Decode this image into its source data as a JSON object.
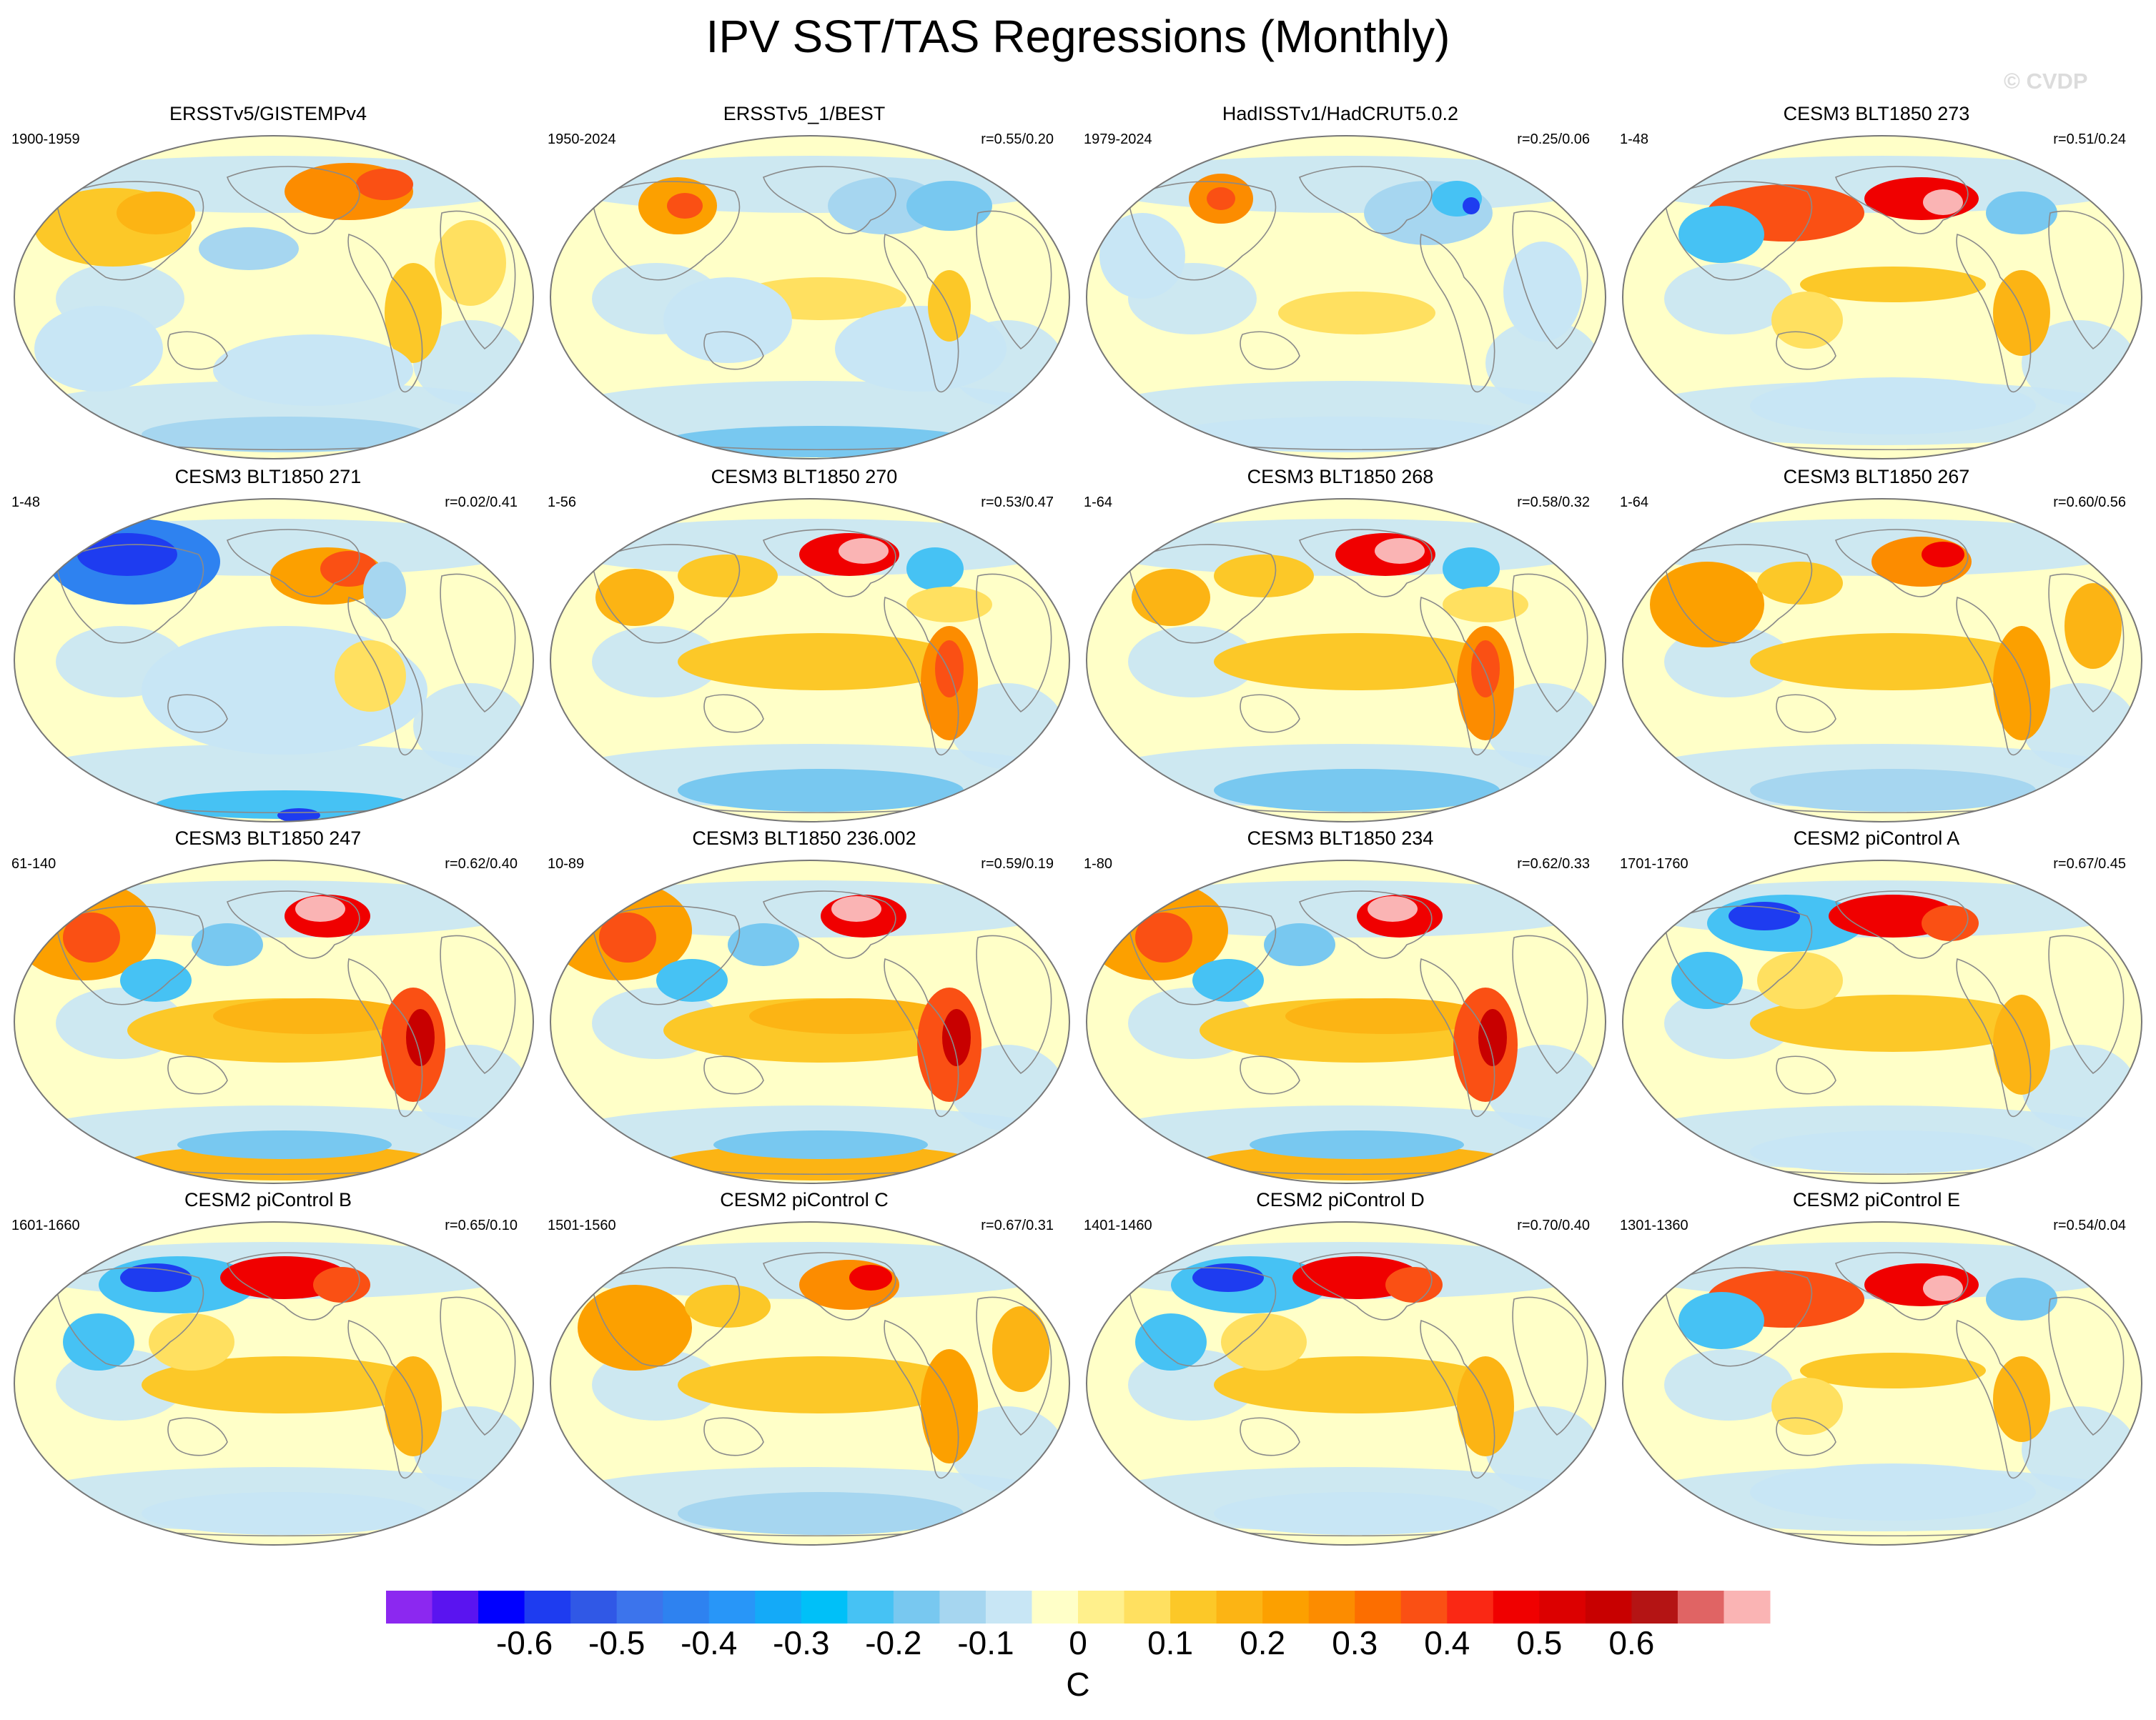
{
  "title": "IPV SST/TAS Regressions (Monthly)",
  "watermark": "© CVDP",
  "panels": [
    {
      "title": "ERSSTv5/GISTEMPv4",
      "period": "1900-1959",
      "corr": "",
      "pattern": "obs1"
    },
    {
      "title": "ERSSTv5_1/BEST",
      "period": "1950-2024",
      "corr": "r=0.55/0.20",
      "pattern": "obs2"
    },
    {
      "title": "HadISSTv1/HadCRUT5.0.2",
      "period": "1979-2024",
      "corr": "r=0.25/0.06",
      "pattern": "obs3"
    },
    {
      "title": "CESM3 BLT1850 273",
      "period": "1-48",
      "corr": "r=0.51/0.24",
      "pattern": "m1"
    },
    {
      "title": "CESM3 BLT1850 271",
      "period": "1-48",
      "corr": "r=0.02/0.41",
      "pattern": "m2"
    },
    {
      "title": "CESM3 BLT1850 270",
      "period": "1-56",
      "corr": "r=0.53/0.47",
      "pattern": "m3"
    },
    {
      "title": "CESM3 BLT1850 268",
      "period": "1-64",
      "corr": "r=0.58/0.32",
      "pattern": "m3"
    },
    {
      "title": "CESM3 BLT1850 267",
      "period": "1-64",
      "corr": "r=0.60/0.56",
      "pattern": "m4"
    },
    {
      "title": "CESM3 BLT1850 247",
      "period": "61-140",
      "corr": "r=0.62/0.40",
      "pattern": "m5"
    },
    {
      "title": "CESM3 BLT1850 236.002",
      "period": "10-89",
      "corr": "r=0.59/0.19",
      "pattern": "m5"
    },
    {
      "title": "CESM3 BLT1850 234",
      "period": "1-80",
      "corr": "r=0.62/0.33",
      "pattern": "m5"
    },
    {
      "title": "CESM2 piControl A",
      "period": "1701-1760",
      "corr": "r=0.67/0.45",
      "pattern": "m6"
    },
    {
      "title": "CESM2 piControl B",
      "period": "1601-1660",
      "corr": "r=0.65/0.10",
      "pattern": "m6"
    },
    {
      "title": "CESM2 piControl C",
      "period": "1501-1560",
      "corr": "r=0.67/0.31",
      "pattern": "m4"
    },
    {
      "title": "CESM2 piControl D",
      "period": "1401-1460",
      "corr": "r=0.70/0.40",
      "pattern": "m6"
    },
    {
      "title": "CESM2 piControl E",
      "period": "1301-1360",
      "corr": "r=0.54/0.04",
      "pattern": "m1"
    }
  ],
  "colorbar": {
    "colors": [
      "#8c28f0",
      "#5a14f0",
      "#0000ff",
      "#1e3cf0",
      "#3058e6",
      "#3c74ec",
      "#2e82f0",
      "#2896f8",
      "#14aaf8",
      "#00c0f8",
      "#46c2f4",
      "#78c8f0",
      "#a6d6f0",
      "#c8e6f5",
      "#ffffc8",
      "#fff08c",
      "#ffe060",
      "#fcc828",
      "#fcb414",
      "#fca000",
      "#fc8c00",
      "#fc6e00",
      "#fa5014",
      "#fa2814",
      "#f00000",
      "#dc0000",
      "#c80000",
      "#b41414",
      "#e06464",
      "#fab4b4"
    ],
    "tick_labels": [
      "-0.6",
      "-0.5",
      "-0.4",
      "-0.3",
      "-0.2",
      "-0.1",
      "0",
      "0.1",
      "0.2",
      "0.3",
      "0.4",
      "0.5",
      "0.6"
    ],
    "unit": "C"
  },
  "chart_data": {
    "type": "heatmap",
    "title": "IPV SST/TAS Regressions (Monthly)",
    "panel_count": 16,
    "colorbar_range": [
      -0.7,
      0.7
    ],
    "colorbar_step": 0.05,
    "colorbar_unit": "C",
    "projection": "global map (Robinson-like ellipse)"
  }
}
